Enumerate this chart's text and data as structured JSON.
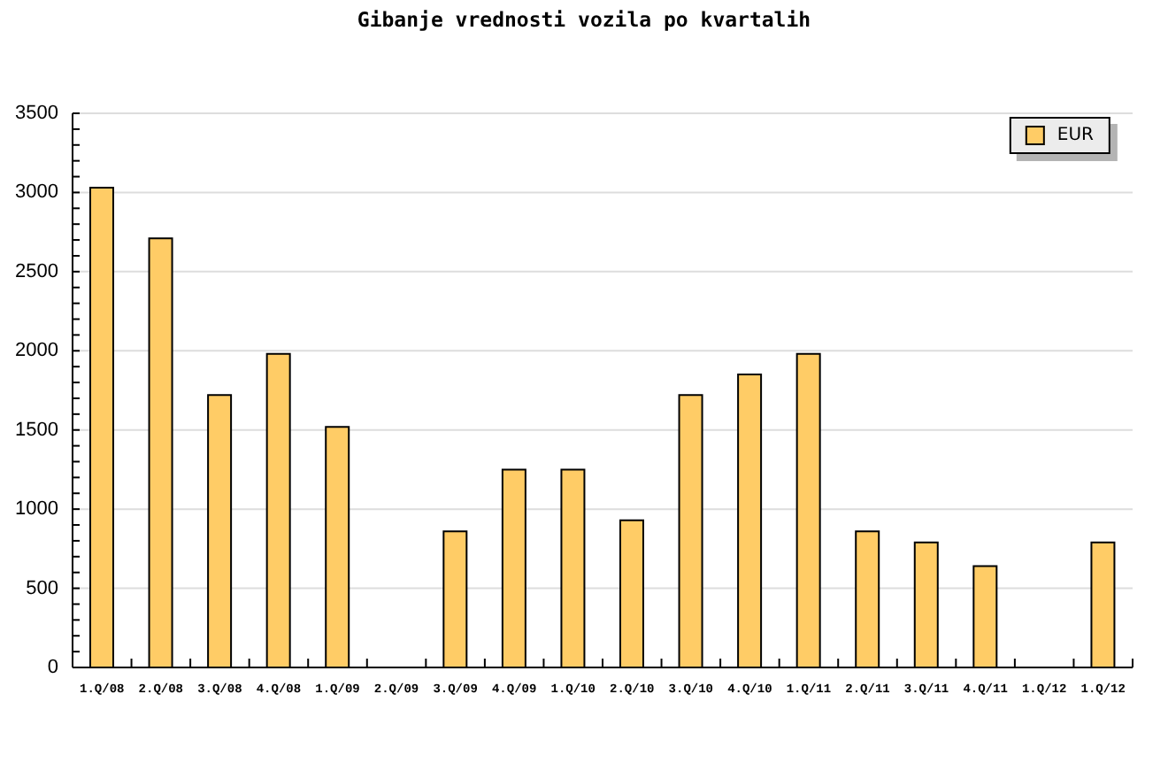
{
  "chart_data": {
    "type": "bar",
    "title": "Gibanje vrednosti vozila po kvartalih",
    "categories": [
      "1.Q/08",
      "2.Q/08",
      "3.Q/08",
      "4.Q/08",
      "1.Q/09",
      "2.Q/09",
      "3.Q/09",
      "4.Q/09",
      "1.Q/10",
      "2.Q/10",
      "3.Q/10",
      "4.Q/10",
      "1.Q/11",
      "2.Q/11",
      "3.Q/11",
      "4.Q/11",
      "1.Q/12",
      "1.Q/12"
    ],
    "series": [
      {
        "name": "EUR",
        "color": "#ffcc66",
        "values": [
          3030,
          2710,
          1720,
          1980,
          1520,
          null,
          860,
          1250,
          1250,
          930,
          1720,
          1850,
          1980,
          860,
          790,
          640,
          null,
          790
        ]
      }
    ],
    "ylim": [
      0,
      3500
    ],
    "yticks": [
      0,
      {
        "value": 100,
        "label": null
      },
      {
        "value": 200,
        "label": null
      },
      {
        "value": 300,
        "label": null
      },
      {
        "value": 400,
        "label": null
      },
      500,
      {
        "value": 600,
        "label": null
      },
      {
        "value": 700,
        "label": null
      },
      {
        "value": 800,
        "label": null
      },
      {
        "value": 900,
        "label": null
      },
      1000,
      {
        "value": 1100,
        "label": null
      },
      {
        "value": 1200,
        "label": null
      },
      {
        "value": 1300,
        "label": null
      },
      {
        "value": 1400,
        "label": null
      },
      1500,
      {
        "value": 1600,
        "label": null
      },
      {
        "value": 1700,
        "label": null
      },
      {
        "value": 1800,
        "label": null
      },
      {
        "value": 1900,
        "label": null
      },
      2000,
      {
        "value": 2100,
        "label": null
      },
      {
        "value": 2200,
        "label": null
      },
      {
        "value": 2300,
        "label": null
      },
      {
        "value": 2400,
        "label": null
      },
      2500,
      {
        "value": 2600,
        "label": null
      },
      {
        "value": 2700,
        "label": null
      },
      {
        "value": 2800,
        "label": null
      },
      {
        "value": 2900,
        "label": null
      },
      3000,
      {
        "value": 3100,
        "label": null
      },
      {
        "value": 3200,
        "label": null
      },
      {
        "value": 3300,
        "label": null
      },
      {
        "value": 3400,
        "label": null
      },
      3500
    ],
    "grid": "y",
    "legend": "top right"
  }
}
